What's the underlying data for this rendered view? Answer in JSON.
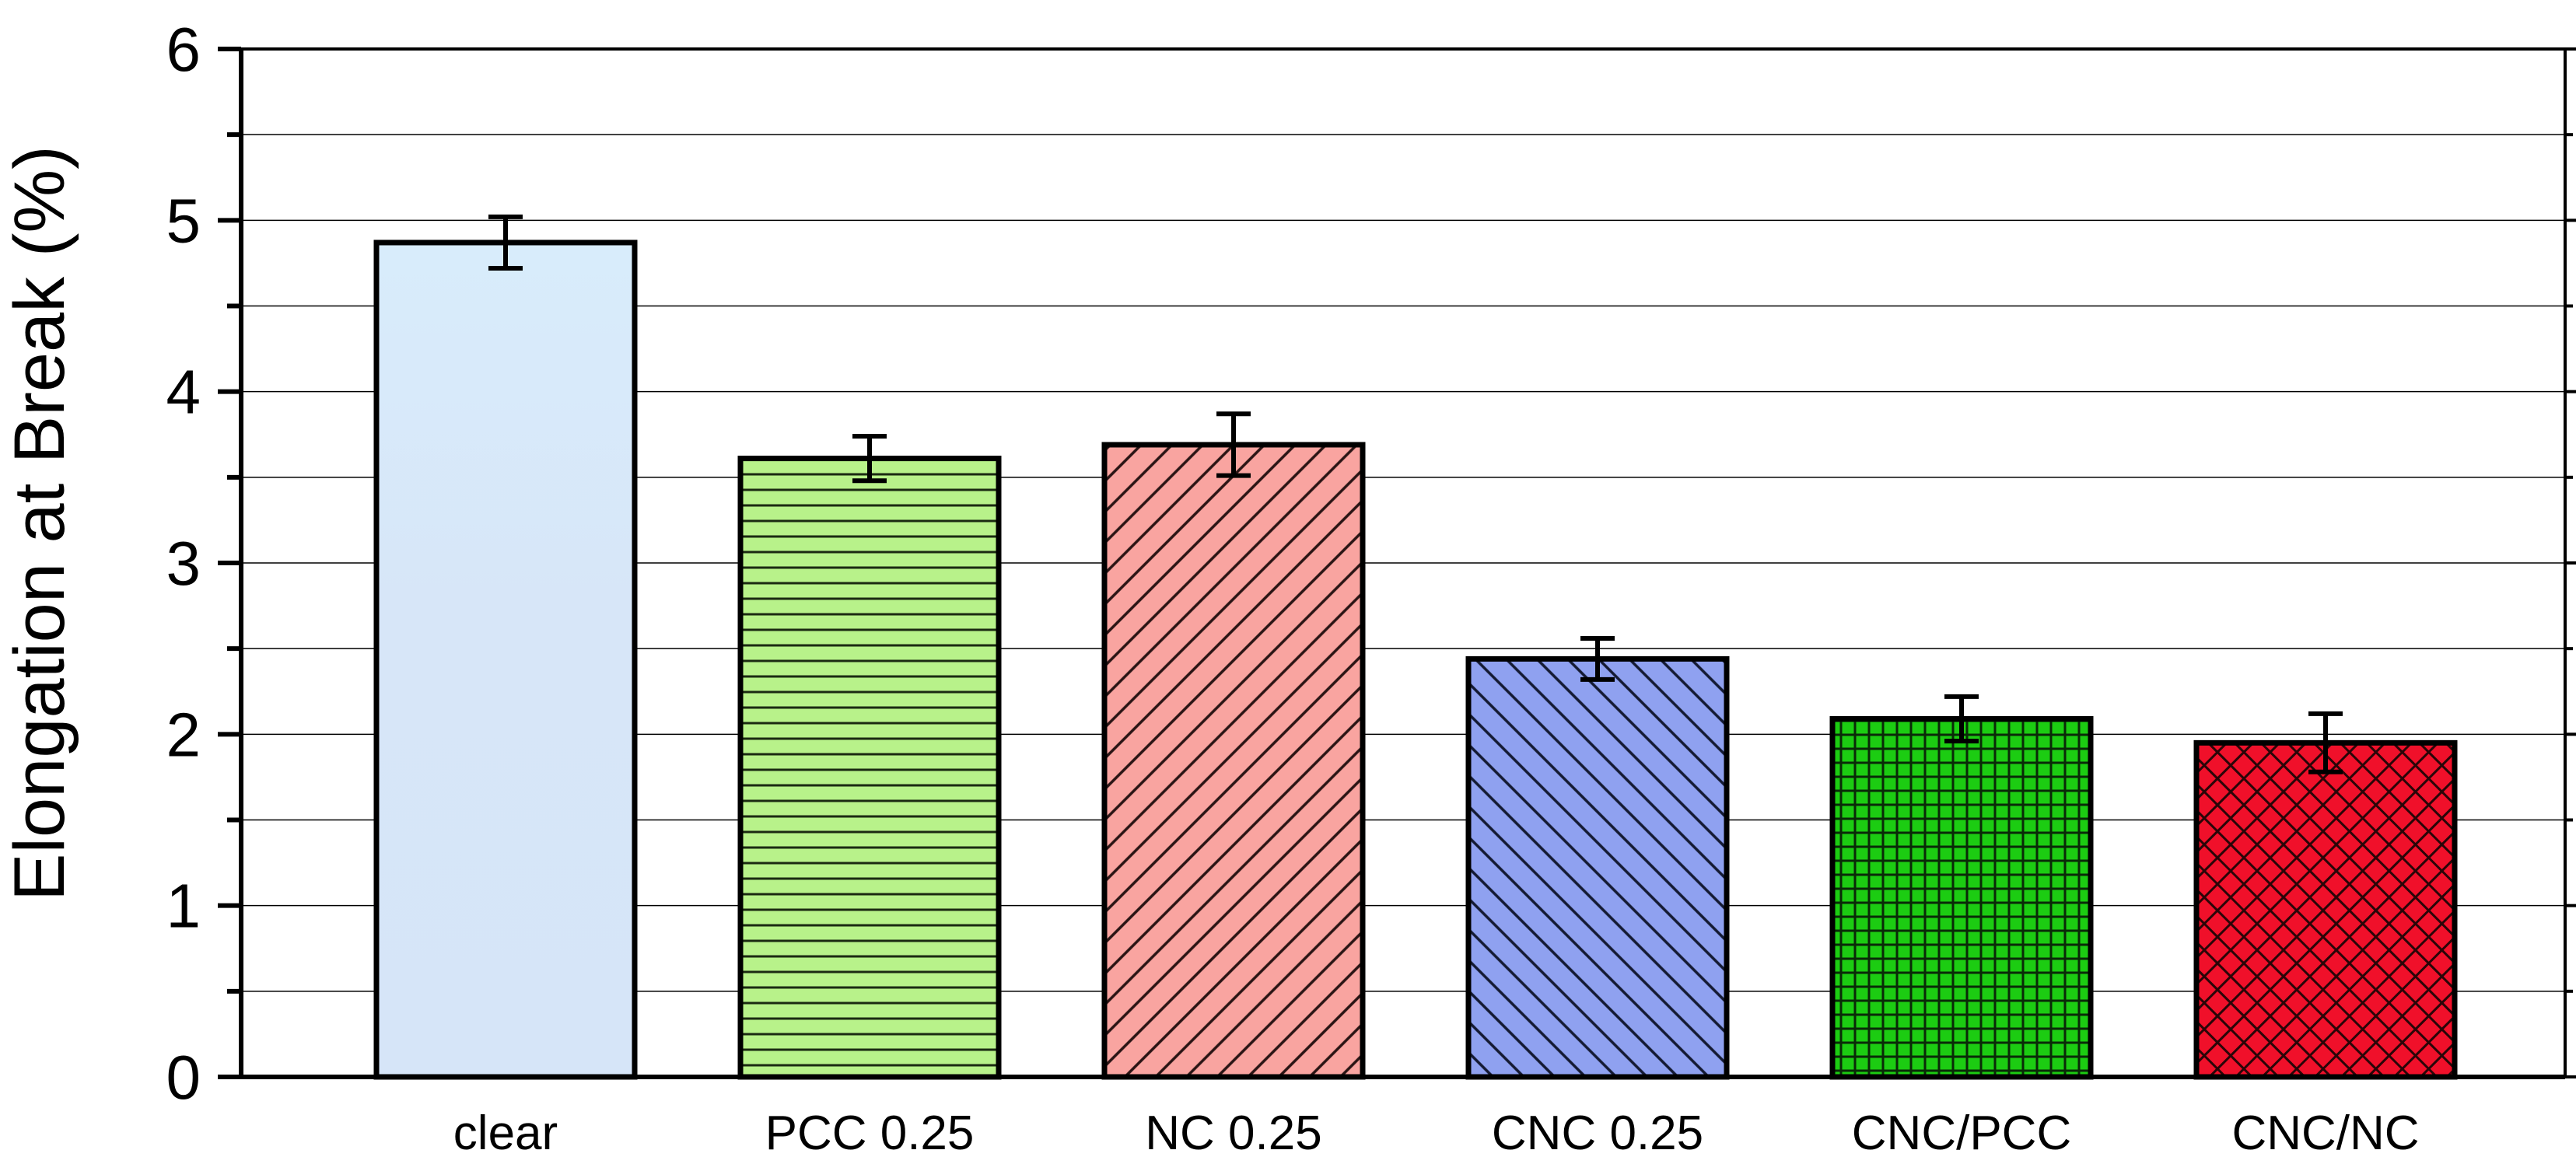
{
  "chart_data": {
    "type": "bar",
    "title": "",
    "xlabel": "",
    "ylabel": "Elongation at Break (%)",
    "ylim": [
      0,
      6
    ],
    "yticks": [
      "0",
      "1",
      "2",
      "3",
      "4",
      "5",
      "6"
    ],
    "grid": "horizontal",
    "categories": [
      "clear",
      "PCC 0.25",
      "NC 0.25",
      "CNC 0.25",
      "CNC/PCC",
      "CNC/NC"
    ],
    "values": [
      4.87,
      3.61,
      3.69,
      2.44,
      2.09,
      1.95
    ],
    "errors": [
      0.15,
      0.13,
      0.18,
      0.12,
      0.13,
      0.17
    ],
    "bar_colors": [
      "#d9e8f8",
      "#b8f28a",
      "#f9a4a0",
      "#8fa1f0",
      "#1ccc12",
      "#f0102a"
    ],
    "bar_patterns": [
      "none",
      "horizontal",
      "diagonal-down",
      "diagonal-up",
      "grid",
      "crosshatch"
    ]
  }
}
